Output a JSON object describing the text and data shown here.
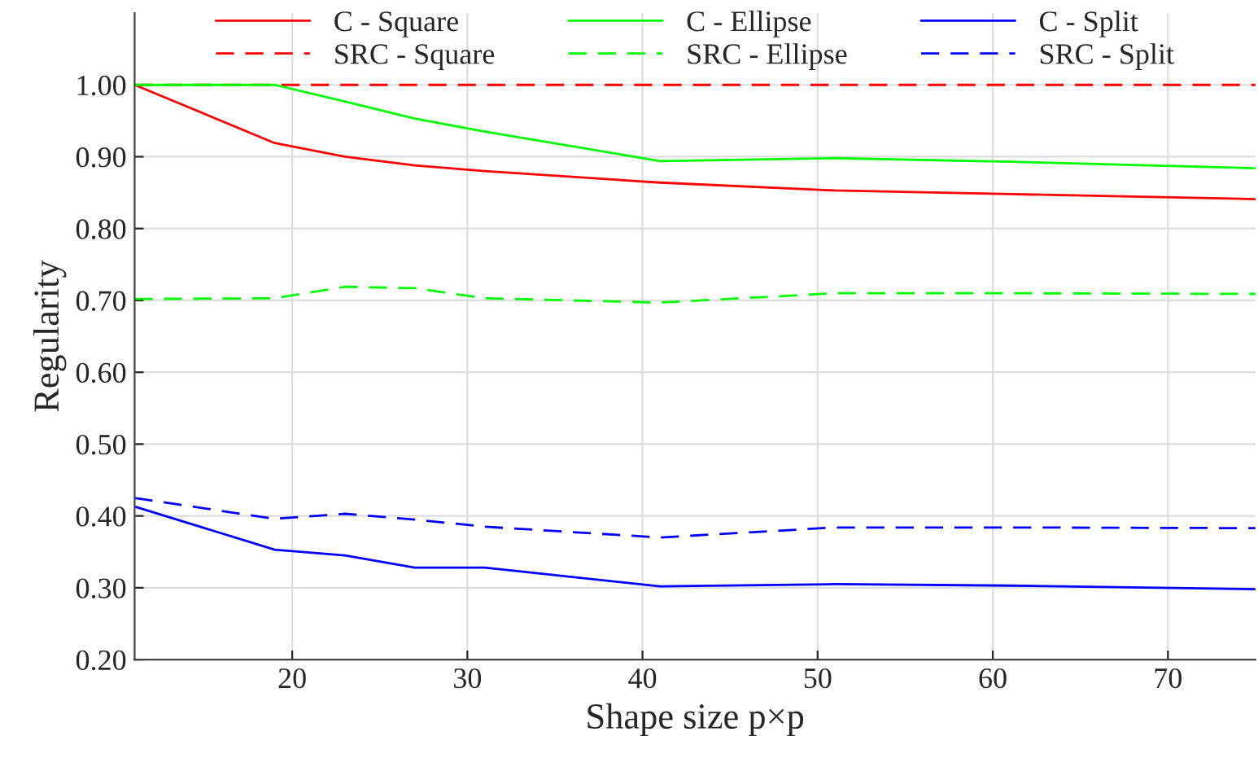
{
  "chart_data": {
    "type": "line",
    "xlabel": "Shape size p×p",
    "ylabel": "Regularity",
    "xlim": [
      11,
      75
    ],
    "xticks": [
      20,
      30,
      40,
      50,
      60,
      70
    ],
    "ylim": [
      0.2,
      1.1
    ],
    "yticks": [
      {
        "value": 0.2,
        "label": "0.20"
      },
      {
        "value": 0.3,
        "label": "0.30"
      },
      {
        "value": 0.4,
        "label": "0.40"
      },
      {
        "value": 0.5,
        "label": "0.50"
      },
      {
        "value": 0.6,
        "label": "0.60"
      },
      {
        "value": 0.7,
        "label": "0.70"
      },
      {
        "value": 0.8,
        "label": "0.80"
      },
      {
        "value": 0.9,
        "label": "0.90"
      },
      {
        "value": 1.0,
        "label": "1.00"
      }
    ],
    "grid": true,
    "legend": "top",
    "marker": "none",
    "series": [
      {
        "name": "C - Square",
        "color": "#ff0000",
        "line_style": "solid",
        "x": [
          11,
          19,
          23,
          27,
          31,
          41,
          51,
          61,
          75
        ],
        "values": [
          1.0,
          0.919,
          0.9,
          0.888,
          0.88,
          0.864,
          0.853,
          0.848,
          0.841
        ]
      },
      {
        "name": "SRC - Square",
        "color": "#ff0000",
        "line_style": "dashed",
        "x": [
          11,
          75
        ],
        "values": [
          1.0,
          1.0
        ]
      },
      {
        "name": "C - Ellipse",
        "color": "#00ff00",
        "line_style": "solid",
        "x": [
          11,
          19,
          23,
          27,
          31,
          41,
          51,
          61,
          75
        ],
        "values": [
          1.0,
          1.0,
          0.977,
          0.953,
          0.935,
          0.894,
          0.898,
          0.893,
          0.884
        ]
      },
      {
        "name": "SRC - Ellipse",
        "color": "#00ff00",
        "line_style": "dashed",
        "x": [
          11,
          19,
          23,
          27,
          31,
          41,
          51,
          61,
          75
        ],
        "values": [
          0.702,
          0.703,
          0.719,
          0.717,
          0.703,
          0.697,
          0.71,
          0.71,
          0.709
        ]
      },
      {
        "name": "C - Split",
        "color": "#0000ff",
        "line_style": "solid",
        "x": [
          11,
          19,
          23,
          27,
          31,
          41,
          51,
          61,
          75
        ],
        "values": [
          0.413,
          0.353,
          0.345,
          0.328,
          0.328,
          0.302,
          0.305,
          0.303,
          0.298
        ]
      },
      {
        "name": "SRC - Split",
        "color": "#0000ff",
        "line_style": "dashed",
        "x": [
          11,
          19,
          23,
          27,
          31,
          41,
          51,
          61,
          75
        ],
        "values": [
          0.425,
          0.396,
          0.403,
          0.395,
          0.385,
          0.37,
          0.384,
          0.384,
          0.383
        ]
      }
    ]
  }
}
